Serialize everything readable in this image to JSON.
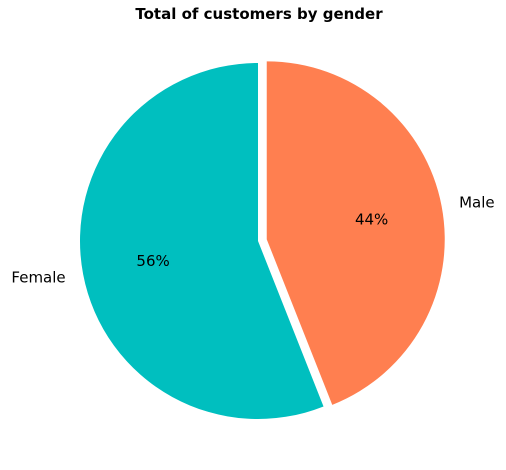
{
  "chart_data": {
    "type": "pie",
    "title": "Total of customers by gender",
    "start_angle_deg": 90,
    "direction": "clockwise",
    "slices": [
      {
        "label": "Male",
        "value": 44,
        "pct_label": "44%",
        "color": "#ff7f50",
        "explode": 0.05
      },
      {
        "label": "Female",
        "value": 56,
        "pct_label": "56%",
        "color": "#00bfbf",
        "explode": 0.0
      }
    ]
  }
}
